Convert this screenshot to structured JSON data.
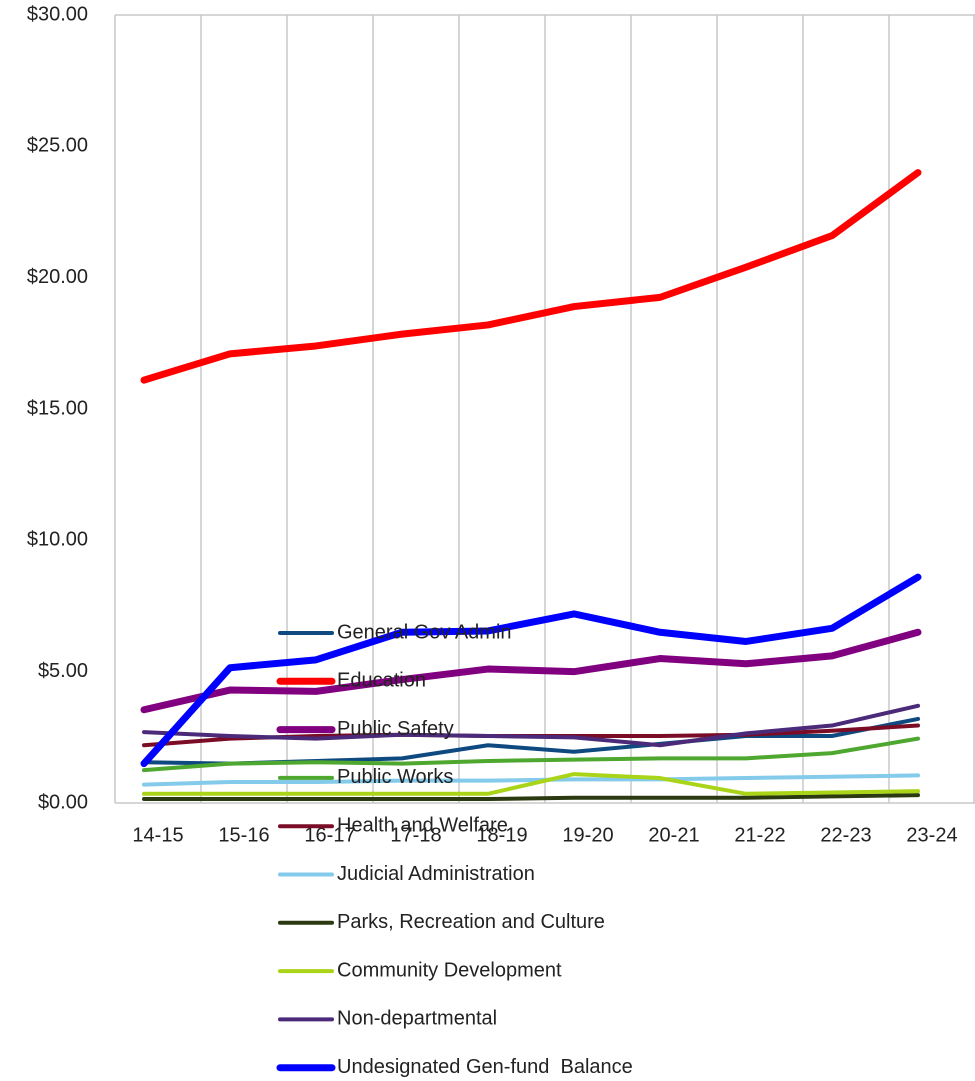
{
  "chart_data": {
    "type": "line",
    "categories": [
      "14-15",
      "15-16",
      "16-17",
      "17-18",
      "18-19",
      "19-20",
      "20-21",
      "21-22",
      "22-23",
      "23-24"
    ],
    "ylim": [
      0,
      30
    ],
    "yticks": [
      {
        "value": 0,
        "label": "$0.00"
      },
      {
        "value": 5,
        "label": "$5.00"
      },
      {
        "value": 10,
        "label": "$10.00"
      },
      {
        "value": 15,
        "label": "$15.00"
      },
      {
        "value": 20,
        "label": "$20.00"
      },
      {
        "value": 25,
        "label": "$25.00"
      },
      {
        "value": 30,
        "label": "$30.00"
      }
    ],
    "grid": true,
    "series": [
      {
        "name": "General Gov Admin",
        "color": "#0e4a80",
        "values": [
          1.55,
          1.5,
          1.6,
          1.7,
          2.2,
          1.95,
          2.25,
          2.55,
          2.55,
          3.2
        ]
      },
      {
        "name": "Education",
        "color": "#ff0000",
        "values": [
          16.1,
          17.1,
          17.4,
          17.85,
          18.2,
          18.9,
          19.25,
          20.4,
          21.6,
          24.0
        ]
      },
      {
        "name": "Public Safety",
        "color": "#800080",
        "values": [
          3.55,
          4.3,
          4.25,
          4.7,
          5.1,
          5.0,
          5.5,
          5.3,
          5.6,
          6.5
        ]
      },
      {
        "name": "Public Works",
        "color": "#4ea72e",
        "values": [
          1.25,
          1.5,
          1.55,
          1.5,
          1.6,
          1.65,
          1.7,
          1.7,
          1.9,
          2.45
        ]
      },
      {
        "name": "Health and Welfare",
        "color": "#7b0c26",
        "values": [
          2.2,
          2.45,
          2.55,
          2.6,
          2.55,
          2.55,
          2.55,
          2.6,
          2.75,
          2.95
        ]
      },
      {
        "name": "Judicial Administration",
        "color": "#83caeb",
        "values": [
          0.7,
          0.8,
          0.8,
          0.85,
          0.85,
          0.9,
          0.9,
          0.95,
          1.0,
          1.05
        ]
      },
      {
        "name": "Parks, Recreation and Culture",
        "color": "#2b3a10",
        "values": [
          0.15,
          0.15,
          0.15,
          0.15,
          0.15,
          0.2,
          0.2,
          0.2,
          0.25,
          0.3
        ]
      },
      {
        "name": "Community Development",
        "color": "#a9d418",
        "values": [
          0.35,
          0.35,
          0.35,
          0.35,
          0.35,
          1.1,
          0.95,
          0.35,
          0.4,
          0.45
        ]
      },
      {
        "name": "Non-departmental",
        "color": "#4b2a7a",
        "values": [
          2.7,
          2.55,
          2.45,
          2.6,
          2.55,
          2.5,
          2.2,
          2.65,
          2.95,
          3.7
        ]
      },
      {
        "name": "Undesignated Gen-fund  Balance",
        "color": "#0000ff",
        "values": [
          1.5,
          5.15,
          5.45,
          6.5,
          6.55,
          7.2,
          6.5,
          6.15,
          6.65,
          8.6
        ]
      }
    ]
  }
}
